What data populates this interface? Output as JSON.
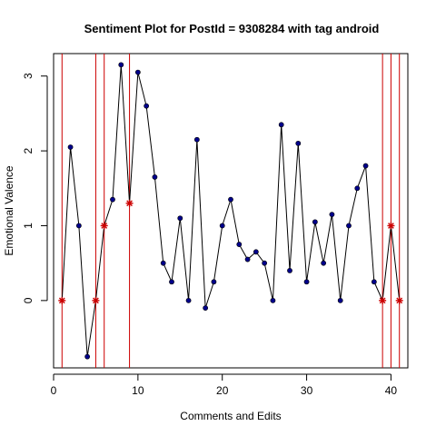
{
  "chart_data": {
    "type": "line",
    "title": "Sentiment Plot for PostId =  9308284  with tag  android",
    "xlabel": "Comments and Edits",
    "ylabel": "Emotional Valence",
    "xlim": [
      0,
      42
    ],
    "ylim": [
      -0.9,
      3.3
    ],
    "x_ticks": [
      0,
      10,
      20,
      30,
      40
    ],
    "y_ticks": [
      0,
      1,
      2,
      3
    ],
    "grid": false,
    "legend": "none",
    "series": [
      {
        "x": [
          1,
          2,
          3,
          4,
          5,
          6,
          7,
          8,
          9,
          10,
          11,
          12,
          13,
          14,
          15,
          16,
          17,
          18,
          19,
          20,
          21,
          22,
          23,
          24,
          25,
          26,
          27,
          28,
          29,
          30,
          31,
          32,
          33,
          34,
          35,
          36,
          37,
          38,
          39,
          40,
          41
        ],
        "y": [
          0,
          2.05,
          1.0,
          -0.75,
          0,
          1.0,
          1.35,
          3.15,
          1.3,
          3.05,
          2.6,
          1.65,
          0.5,
          0.25,
          1.1,
          0,
          2.15,
          -0.1,
          0.25,
          1.0,
          1.35,
          0.75,
          0.55,
          0.65,
          0.5,
          0,
          2.35,
          0.4,
          2.1,
          0.25,
          1.05,
          0.5,
          1.15,
          0,
          1.0,
          1.5,
          1.8,
          0.25,
          0,
          1.0,
          0
        ]
      }
    ],
    "highlighted_x": [
      1,
      5,
      6,
      9,
      39,
      40,
      41
    ],
    "colors": {
      "line": "#000000",
      "point": "#00008B",
      "highlight_marker": "#CC0000",
      "vertical_line": "#CC0000"
    }
  }
}
